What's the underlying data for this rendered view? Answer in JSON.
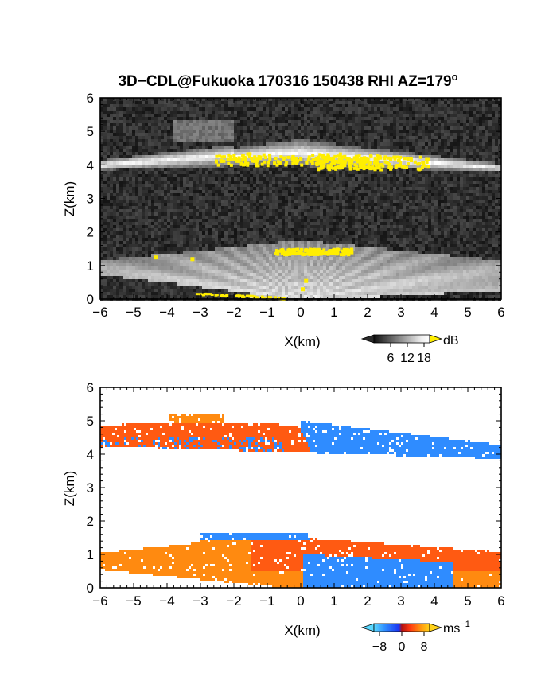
{
  "title": "3D−CDL@Fukuoka 170316 150438 RHI AZ=179",
  "title_degree": "o",
  "colors": {
    "yellow": "#ffee00",
    "velocity_scale": [
      "#5ad8ff",
      "#2f8cff",
      "#1b34f0",
      "#d62a14",
      "#ff5a12",
      "#ff8a10",
      "#ffd21a"
    ]
  },
  "chart_data": [
    {
      "type": "heatmap",
      "panel": "reflectivity",
      "xlabel": "X(km)",
      "ylabel": "Z(km)",
      "xlim": [
        -6,
        6
      ],
      "ylim": [
        0,
        6
      ],
      "x_ticks": [
        "−6",
        "−5",
        "−4",
        "−3",
        "−2",
        "−1",
        "0",
        "1",
        "2",
        "3",
        "4",
        "5",
        "6"
      ],
      "y_ticks": [
        "0",
        "1",
        "2",
        "3",
        "4",
        "5",
        "6"
      ],
      "colorbar": {
        "unit": "dB",
        "ticks": [
          "6",
          "12",
          "18"
        ],
        "range": [
          0,
          20
        ]
      },
      "layers": [
        {
          "name": "upper-layer",
          "x_range": [
            -6,
            6
          ],
          "z_range": [
            3.9,
            4.9
          ],
          "max_dB": 18
        },
        {
          "name": "lower-layer",
          "x_range": [
            -6,
            6
          ],
          "z_range": [
            0,
            1.8
          ],
          "max_dB": 18
        }
      ]
    },
    {
      "type": "heatmap",
      "panel": "doppler-velocity",
      "xlabel": "X(km)",
      "ylabel": "Z(km)",
      "xlim": [
        -6,
        6
      ],
      "ylim": [
        0,
        6
      ],
      "x_ticks": [
        "−6",
        "−5",
        "−4",
        "−3",
        "−2",
        "−1",
        "0",
        "1",
        "2",
        "3",
        "4",
        "5",
        "6"
      ],
      "y_ticks": [
        "0",
        "1",
        "2",
        "3",
        "4",
        "5",
        "6"
      ],
      "colorbar": {
        "unit": "ms",
        "unit_exp": "−1",
        "ticks": [
          "−8",
          "0",
          "8"
        ],
        "range": [
          -10,
          10
        ]
      },
      "regions": [
        {
          "name": "upper-positive",
          "x_range": [
            -6,
            0
          ],
          "z_range": [
            4.0,
            5.2
          ],
          "velocity": 4
        },
        {
          "name": "upper-negative",
          "x_range": [
            -1,
            6
          ],
          "z_range": [
            3.7,
            5.0
          ],
          "velocity": -7
        },
        {
          "name": "lower-top-negative",
          "x_range": [
            -3.5,
            0.2
          ],
          "z_range": [
            1.4,
            1.7
          ],
          "velocity": -7
        },
        {
          "name": "lower-positive",
          "x_range": [
            -6,
            6
          ],
          "z_range": [
            0,
            1.6
          ],
          "velocity": 5
        },
        {
          "name": "lower-right-negative",
          "x_range": [
            0,
            4.5
          ],
          "z_range": [
            0,
            1.0
          ],
          "velocity": -8
        }
      ]
    }
  ]
}
